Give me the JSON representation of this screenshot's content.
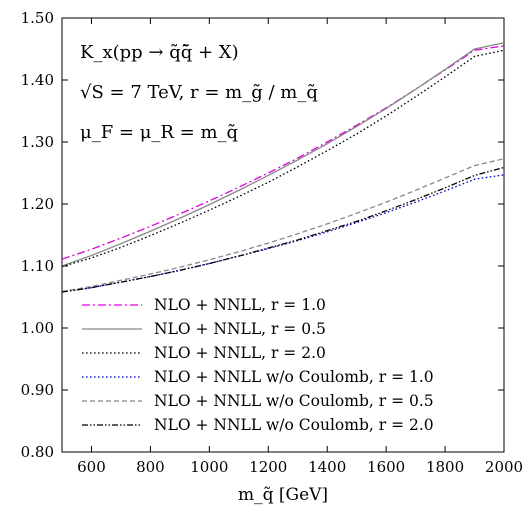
{
  "chart_data": {
    "type": "line",
    "title": "",
    "xlabel": "m_q̃ [GeV]",
    "ylabel": "",
    "xlim": [
      500,
      2000
    ],
    "ylim": [
      0.8,
      1.5
    ],
    "x_ticks": [
      "600",
      "800",
      "1000",
      "1200",
      "1400",
      "1600",
      "1800",
      "2000"
    ],
    "y_ticks": [
      "0.80",
      "0.90",
      "1.00",
      "1.10",
      "1.20",
      "1.30",
      "1.40",
      "1.50"
    ],
    "grid": false,
    "legend_position": "bottom-right",
    "annotations": [
      "K_x(pp → q̃q̄̃ + X)",
      "√S = 7 TeV,     r = m_g̃ / m_q̃",
      "μ_F = μ_R = m_q̃"
    ],
    "x": [
      500,
      600,
      700,
      800,
      900,
      1000,
      1100,
      1200,
      1300,
      1400,
      1500,
      1600,
      1700,
      1800,
      1900,
      2000
    ],
    "series": [
      {
        "name": "NLO + NNLL, r = 1.0",
        "color": "#dd00dd",
        "dash": "dashdot",
        "values": [
          1.111,
          1.127,
          1.145,
          1.164,
          1.184,
          1.205,
          1.227,
          1.25,
          1.274,
          1.3,
          1.327,
          1.355,
          1.385,
          1.416,
          1.448,
          1.455
        ]
      },
      {
        "name": "NLO + NNLL, r = 0.5",
        "color": "#888888",
        "dash": "solid",
        "values": [
          1.1,
          1.117,
          1.136,
          1.156,
          1.177,
          1.199,
          1.222,
          1.246,
          1.271,
          1.297,
          1.325,
          1.354,
          1.385,
          1.417,
          1.45,
          1.46
        ]
      },
      {
        "name": "NLO + NNLL, r = 2.0",
        "color": "#000000",
        "dash": "dotted",
        "values": [
          1.099,
          1.113,
          1.13,
          1.149,
          1.169,
          1.19,
          1.212,
          1.235,
          1.26,
          1.286,
          1.313,
          1.342,
          1.373,
          1.405,
          1.438,
          1.448
        ]
      },
      {
        "name": "NLO + NNLL w/o Coulomb, r = 1.0",
        "color": "#0000cc",
        "dash": "dotted",
        "values": [
          1.058,
          1.065,
          1.074,
          1.083,
          1.093,
          1.104,
          1.116,
          1.128,
          1.141,
          1.155,
          1.17,
          1.186,
          1.203,
          1.221,
          1.24,
          1.247
        ]
      },
      {
        "name": "NLO + NNLL w/o Coulomb, r = 0.5",
        "color": "#888888",
        "dash": "dashed",
        "values": [
          1.059,
          1.067,
          1.077,
          1.087,
          1.098,
          1.11,
          1.123,
          1.137,
          1.152,
          1.168,
          1.185,
          1.203,
          1.222,
          1.242,
          1.262,
          1.273
        ]
      },
      {
        "name": "NLO + NNLL w/o Coulomb, r = 2.0",
        "color": "#000000",
        "dash": "dashdotdot",
        "values": [
          1.058,
          1.065,
          1.074,
          1.083,
          1.093,
          1.104,
          1.116,
          1.129,
          1.142,
          1.157,
          1.172,
          1.189,
          1.207,
          1.226,
          1.246,
          1.259
        ]
      }
    ]
  }
}
